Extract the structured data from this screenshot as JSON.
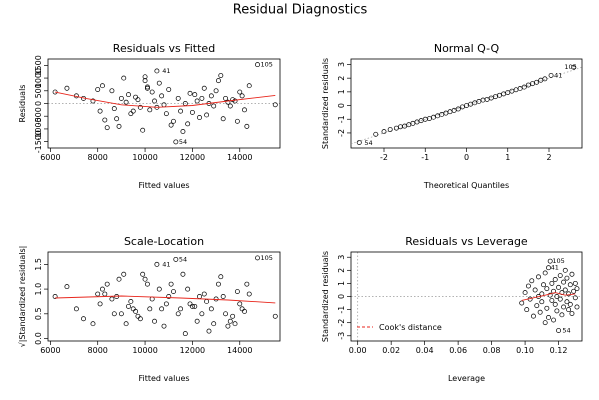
{
  "title": "Residual Diagnostics",
  "chart_data": [
    {
      "type": "scatter",
      "title": "Residuals vs Fitted",
      "xlabel": "Fitted values",
      "ylabel": "Residuals",
      "xlim": [
        5900,
        15700
      ],
      "ylim": [
        -1750,
        1750
      ],
      "xticks": [
        6000,
        8000,
        10000,
        12000,
        14000
      ],
      "yticks": [
        -1500,
        -1000,
        -500,
        0,
        500,
        1000,
        1500
      ],
      "hline": 0,
      "labels": [
        {
          "text": "105",
          "x": 14750,
          "y": 1530
        },
        {
          "text": "41",
          "x": 10600,
          "y": 1280
        },
        {
          "text": "54",
          "x": 11300,
          "y": -1510
        }
      ],
      "smooth": [
        [
          6200,
          450
        ],
        [
          7500,
          200
        ],
        [
          9000,
          -50
        ],
        [
          10500,
          -150
        ],
        [
          12000,
          -80
        ],
        [
          13500,
          100
        ],
        [
          15500,
          320
        ]
      ],
      "points": [
        [
          6200,
          450
        ],
        [
          6700,
          600
        ],
        [
          7100,
          300
        ],
        [
          7400,
          200
        ],
        [
          7800,
          100
        ],
        [
          8000,
          550
        ],
        [
          8100,
          -300
        ],
        [
          8200,
          700
        ],
        [
          8300,
          -650
        ],
        [
          8400,
          -950
        ],
        [
          8600,
          500
        ],
        [
          8700,
          -200
        ],
        [
          8800,
          -600
        ],
        [
          8900,
          -900
        ],
        [
          9000,
          200
        ],
        [
          9100,
          1000
        ],
        [
          9200,
          50
        ],
        [
          9300,
          350
        ],
        [
          9400,
          -400
        ],
        [
          9500,
          -300
        ],
        [
          9600,
          250
        ],
        [
          9700,
          150
        ],
        [
          9800,
          -150
        ],
        [
          9900,
          -1050
        ],
        [
          10000,
          900
        ],
        [
          10000,
          1050
        ],
        [
          10100,
          650
        ],
        [
          10100,
          600
        ],
        [
          10200,
          -250
        ],
        [
          10300,
          450
        ],
        [
          10400,
          100
        ],
        [
          10500,
          1280
        ],
        [
          10500,
          -150
        ],
        [
          10600,
          800
        ],
        [
          10700,
          300
        ],
        [
          10800,
          -50
        ],
        [
          10900,
          -400
        ],
        [
          11000,
          550
        ],
        [
          11100,
          -850
        ],
        [
          11200,
          -700
        ],
        [
          11300,
          -1510
        ],
        [
          11400,
          200
        ],
        [
          11500,
          -300
        ],
        [
          11600,
          -1100
        ],
        [
          11700,
          0
        ],
        [
          11800,
          -800
        ],
        [
          11900,
          400
        ],
        [
          12000,
          -350
        ],
        [
          12100,
          350
        ],
        [
          12200,
          100
        ],
        [
          12300,
          -550
        ],
        [
          12400,
          200
        ],
        [
          12500,
          600
        ],
        [
          12600,
          -450
        ],
        [
          12700,
          0
        ],
        [
          12800,
          300
        ],
        [
          12900,
          -100
        ],
        [
          13000,
          500
        ],
        [
          13100,
          900
        ],
        [
          13200,
          1100
        ],
        [
          13300,
          -600
        ],
        [
          13400,
          200
        ],
        [
          13500,
          50
        ],
        [
          13600,
          -100
        ],
        [
          13700,
          150
        ],
        [
          13800,
          100
        ],
        [
          13900,
          -700
        ],
        [
          14000,
          450
        ],
        [
          14100,
          300
        ],
        [
          14200,
          -250
        ],
        [
          14300,
          -900
        ],
        [
          14400,
          700
        ],
        [
          14750,
          1530
        ],
        [
          15500,
          -50
        ]
      ]
    },
    {
      "type": "scatter",
      "title": "Normal Q-Q",
      "xlabel": "Theoretical Quantiles",
      "ylabel": "Standardized residuals",
      "xlim": [
        -2.8,
        2.8
      ],
      "ylim": [
        -3.1,
        3.4
      ],
      "xticks": [
        -2,
        -1,
        0,
        1,
        2
      ],
      "yticks": [
        -2,
        -1,
        0,
        1,
        2,
        3
      ],
      "reference_line": [
        [
          -2.8,
          -2.8
        ],
        [
          2.8,
          2.8
        ]
      ],
      "labels": [
        {
          "text": "105",
          "x": 2.3,
          "y": 2.8
        },
        {
          "text": "41",
          "x": 2.05,
          "y": 2.2
        },
        {
          "text": "54",
          "x": -2.55,
          "y": -2.75
        }
      ],
      "points": [
        [
          -2.6,
          -2.7
        ],
        [
          -2.2,
          -2.1
        ],
        [
          -2.0,
          -1.9
        ],
        [
          -1.85,
          -1.75
        ],
        [
          -1.7,
          -1.65
        ],
        [
          -1.6,
          -1.55
        ],
        [
          -1.5,
          -1.5
        ],
        [
          -1.4,
          -1.4
        ],
        [
          -1.3,
          -1.3
        ],
        [
          -1.2,
          -1.2
        ],
        [
          -1.1,
          -1.1
        ],
        [
          -1.0,
          -1.0
        ],
        [
          -0.9,
          -0.95
        ],
        [
          -0.8,
          -0.85
        ],
        [
          -0.7,
          -0.75
        ],
        [
          -0.6,
          -0.65
        ],
        [
          -0.5,
          -0.55
        ],
        [
          -0.4,
          -0.45
        ],
        [
          -0.3,
          -0.35
        ],
        [
          -0.2,
          -0.25
        ],
        [
          -0.1,
          -0.1
        ],
        [
          0.0,
          0.0
        ],
        [
          0.1,
          0.1
        ],
        [
          0.2,
          0.2
        ],
        [
          0.3,
          0.3
        ],
        [
          0.4,
          0.4
        ],
        [
          0.5,
          0.45
        ],
        [
          0.6,
          0.55
        ],
        [
          0.7,
          0.65
        ],
        [
          0.8,
          0.75
        ],
        [
          0.9,
          0.85
        ],
        [
          1.0,
          0.95
        ],
        [
          1.1,
          1.05
        ],
        [
          1.2,
          1.15
        ],
        [
          1.3,
          1.25
        ],
        [
          1.4,
          1.35
        ],
        [
          1.5,
          1.5
        ],
        [
          1.6,
          1.6
        ],
        [
          1.7,
          1.7
        ],
        [
          1.8,
          1.85
        ],
        [
          1.9,
          1.95
        ],
        [
          2.05,
          2.2
        ],
        [
          2.6,
          2.8
        ]
      ]
    },
    {
      "type": "scatter",
      "title": "Scale-Location",
      "xlabel": "Fitted values",
      "ylabel": "√|Standardized residuals|",
      "xlim": [
        5900,
        15700
      ],
      "ylim": [
        -0.05,
        1.75
      ],
      "xticks": [
        6000,
        8000,
        10000,
        12000,
        14000
      ],
      "yticks": [
        0.0,
        0.5,
        1.0,
        1.5
      ],
      "labels": [
        {
          "text": "105",
          "x": 14750,
          "y": 1.63
        },
        {
          "text": "54",
          "x": 11300,
          "y": 1.6
        },
        {
          "text": "41",
          "x": 10600,
          "y": 1.5
        }
      ],
      "smooth": [
        [
          6200,
          0.82
        ],
        [
          9000,
          0.86
        ],
        [
          11500,
          0.82
        ],
        [
          13500,
          0.78
        ],
        [
          15500,
          0.72
        ]
      ],
      "points": [
        [
          6200,
          0.85
        ],
        [
          6700,
          1.05
        ],
        [
          7100,
          0.6
        ],
        [
          7400,
          0.4
        ],
        [
          7800,
          0.3
        ],
        [
          8000,
          0.9
        ],
        [
          8100,
          0.7
        ],
        [
          8200,
          1.0
        ],
        [
          8300,
          0.9
        ],
        [
          8400,
          1.1
        ],
        [
          8600,
          0.8
        ],
        [
          8700,
          0.5
        ],
        [
          8800,
          0.85
        ],
        [
          8900,
          1.2
        ],
        [
          9000,
          0.5
        ],
        [
          9100,
          1.3
        ],
        [
          9200,
          0.3
        ],
        [
          9300,
          0.65
        ],
        [
          9400,
          0.75
        ],
        [
          9500,
          0.6
        ],
        [
          9600,
          0.55
        ],
        [
          9700,
          0.45
        ],
        [
          9800,
          0.4
        ],
        [
          9900,
          1.3
        ],
        [
          10000,
          1.2
        ],
        [
          10100,
          1.1
        ],
        [
          10200,
          0.6
        ],
        [
          10300,
          0.8
        ],
        [
          10400,
          0.35
        ],
        [
          10500,
          1.5
        ],
        [
          10600,
          1.0
        ],
        [
          10700,
          0.6
        ],
        [
          10800,
          0.25
        ],
        [
          10900,
          0.7
        ],
        [
          11000,
          0.85
        ],
        [
          11100,
          1.1
        ],
        [
          11200,
          0.95
        ],
        [
          11300,
          1.6
        ],
        [
          11400,
          0.5
        ],
        [
          11500,
          0.6
        ],
        [
          11600,
          1.3
        ],
        [
          11700,
          0.1
        ],
        [
          11800,
          1.0
        ],
        [
          11900,
          0.7
        ],
        [
          12000,
          0.65
        ],
        [
          12100,
          0.65
        ],
        [
          12200,
          0.35
        ],
        [
          12300,
          0.85
        ],
        [
          12400,
          0.5
        ],
        [
          12500,
          0.9
        ],
        [
          12600,
          0.75
        ],
        [
          12700,
          0.15
        ],
        [
          12800,
          0.6
        ],
        [
          12900,
          0.3
        ],
        [
          13000,
          0.8
        ],
        [
          13100,
          1.1
        ],
        [
          13200,
          1.25
        ],
        [
          13300,
          0.85
        ],
        [
          13400,
          0.5
        ],
        [
          13500,
          0.25
        ],
        [
          13600,
          0.35
        ],
        [
          13700,
          0.45
        ],
        [
          13800,
          0.3
        ],
        [
          13900,
          0.95
        ],
        [
          14000,
          0.7
        ],
        [
          14100,
          0.6
        ],
        [
          14200,
          0.55
        ],
        [
          14300,
          1.1
        ],
        [
          14400,
          0.9
        ],
        [
          14750,
          1.63
        ],
        [
          15500,
          0.45
        ]
      ]
    },
    {
      "type": "scatter",
      "title": "Residuals vs Leverage",
      "xlabel": "Leverage",
      "ylabel": "Standardized residuals",
      "xlim": [
        -0.004,
        0.134
      ],
      "ylim": [
        -3.4,
        3.4
      ],
      "xticks": [
        0.0,
        0.02,
        0.04,
        0.06,
        0.08,
        0.1,
        0.12
      ],
      "xticklabels": [
        "0.00",
        "0.02",
        "0.04",
        "0.06",
        "0.08",
        "0.10",
        "0.12"
      ],
      "yticks": [
        -3,
        -2,
        -1,
        0,
        1,
        2,
        3
      ],
      "hline": 0,
      "vline": 0,
      "legend": {
        "label": "Cook's distance",
        "position": "bottom-left"
      },
      "labels": [
        {
          "text": "105",
          "x": 0.1145,
          "y": 2.7
        },
        {
          "text": "41",
          "x": 0.1135,
          "y": 2.2
        },
        {
          "text": "54",
          "x": 0.1205,
          "y": -2.6
        }
      ],
      "smooth": [
        [
          0.098,
          -0.3
        ],
        [
          0.105,
          -0.1
        ],
        [
          0.112,
          0.1
        ],
        [
          0.118,
          0.3
        ],
        [
          0.124,
          0.1
        ],
        [
          0.13,
          0.2
        ]
      ],
      "points": [
        [
          0.098,
          -0.5
        ],
        [
          0.1,
          0.3
        ],
        [
          0.101,
          -1.0
        ],
        [
          0.102,
          0.8
        ],
        [
          0.103,
          -0.2
        ],
        [
          0.104,
          1.2
        ],
        [
          0.105,
          -1.5
        ],
        [
          0.106,
          0.5
        ],
        [
          0.107,
          -0.7
        ],
        [
          0.108,
          0.0
        ],
        [
          0.108,
          1.5
        ],
        [
          0.109,
          -1.2
        ],
        [
          0.11,
          0.2
        ],
        [
          0.11,
          -0.4
        ],
        [
          0.111,
          0.9
        ],
        [
          0.112,
          -2.0
        ],
        [
          0.112,
          1.8
        ],
        [
          0.113,
          -0.9
        ],
        [
          0.113,
          0.6
        ],
        [
          0.114,
          2.2
        ],
        [
          0.114,
          -1.6
        ],
        [
          0.115,
          2.7
        ],
        [
          0.115,
          0.1
        ],
        [
          0.116,
          -0.3
        ],
        [
          0.116,
          1.0
        ],
        [
          0.117,
          -1.8
        ],
        [
          0.117,
          0.4
        ],
        [
          0.118,
          -0.6
        ],
        [
          0.118,
          1.3
        ],
        [
          0.119,
          0.0
        ],
        [
          0.119,
          -1.1
        ],
        [
          0.12,
          0.7
        ],
        [
          0.12,
          -2.6
        ],
        [
          0.121,
          1.6
        ],
        [
          0.121,
          -0.2
        ],
        [
          0.122,
          0.3
        ],
        [
          0.122,
          -1.4
        ],
        [
          0.123,
          1.1
        ],
        [
          0.123,
          -0.8
        ],
        [
          0.124,
          0.5
        ],
        [
          0.124,
          2.0
        ],
        [
          0.125,
          -0.4
        ],
        [
          0.125,
          1.4
        ],
        [
          0.126,
          -1.0
        ],
        [
          0.126,
          0.2
        ],
        [
          0.127,
          0.9
        ],
        [
          0.127,
          -0.6
        ],
        [
          0.128,
          1.7
        ],
        [
          0.128,
          -1.3
        ],
        [
          0.129,
          0.4
        ],
        [
          0.13,
          -0.1
        ],
        [
          0.13,
          1.0
        ],
        [
          0.131,
          -0.8
        ],
        [
          0.131,
          0.6
        ]
      ]
    }
  ]
}
